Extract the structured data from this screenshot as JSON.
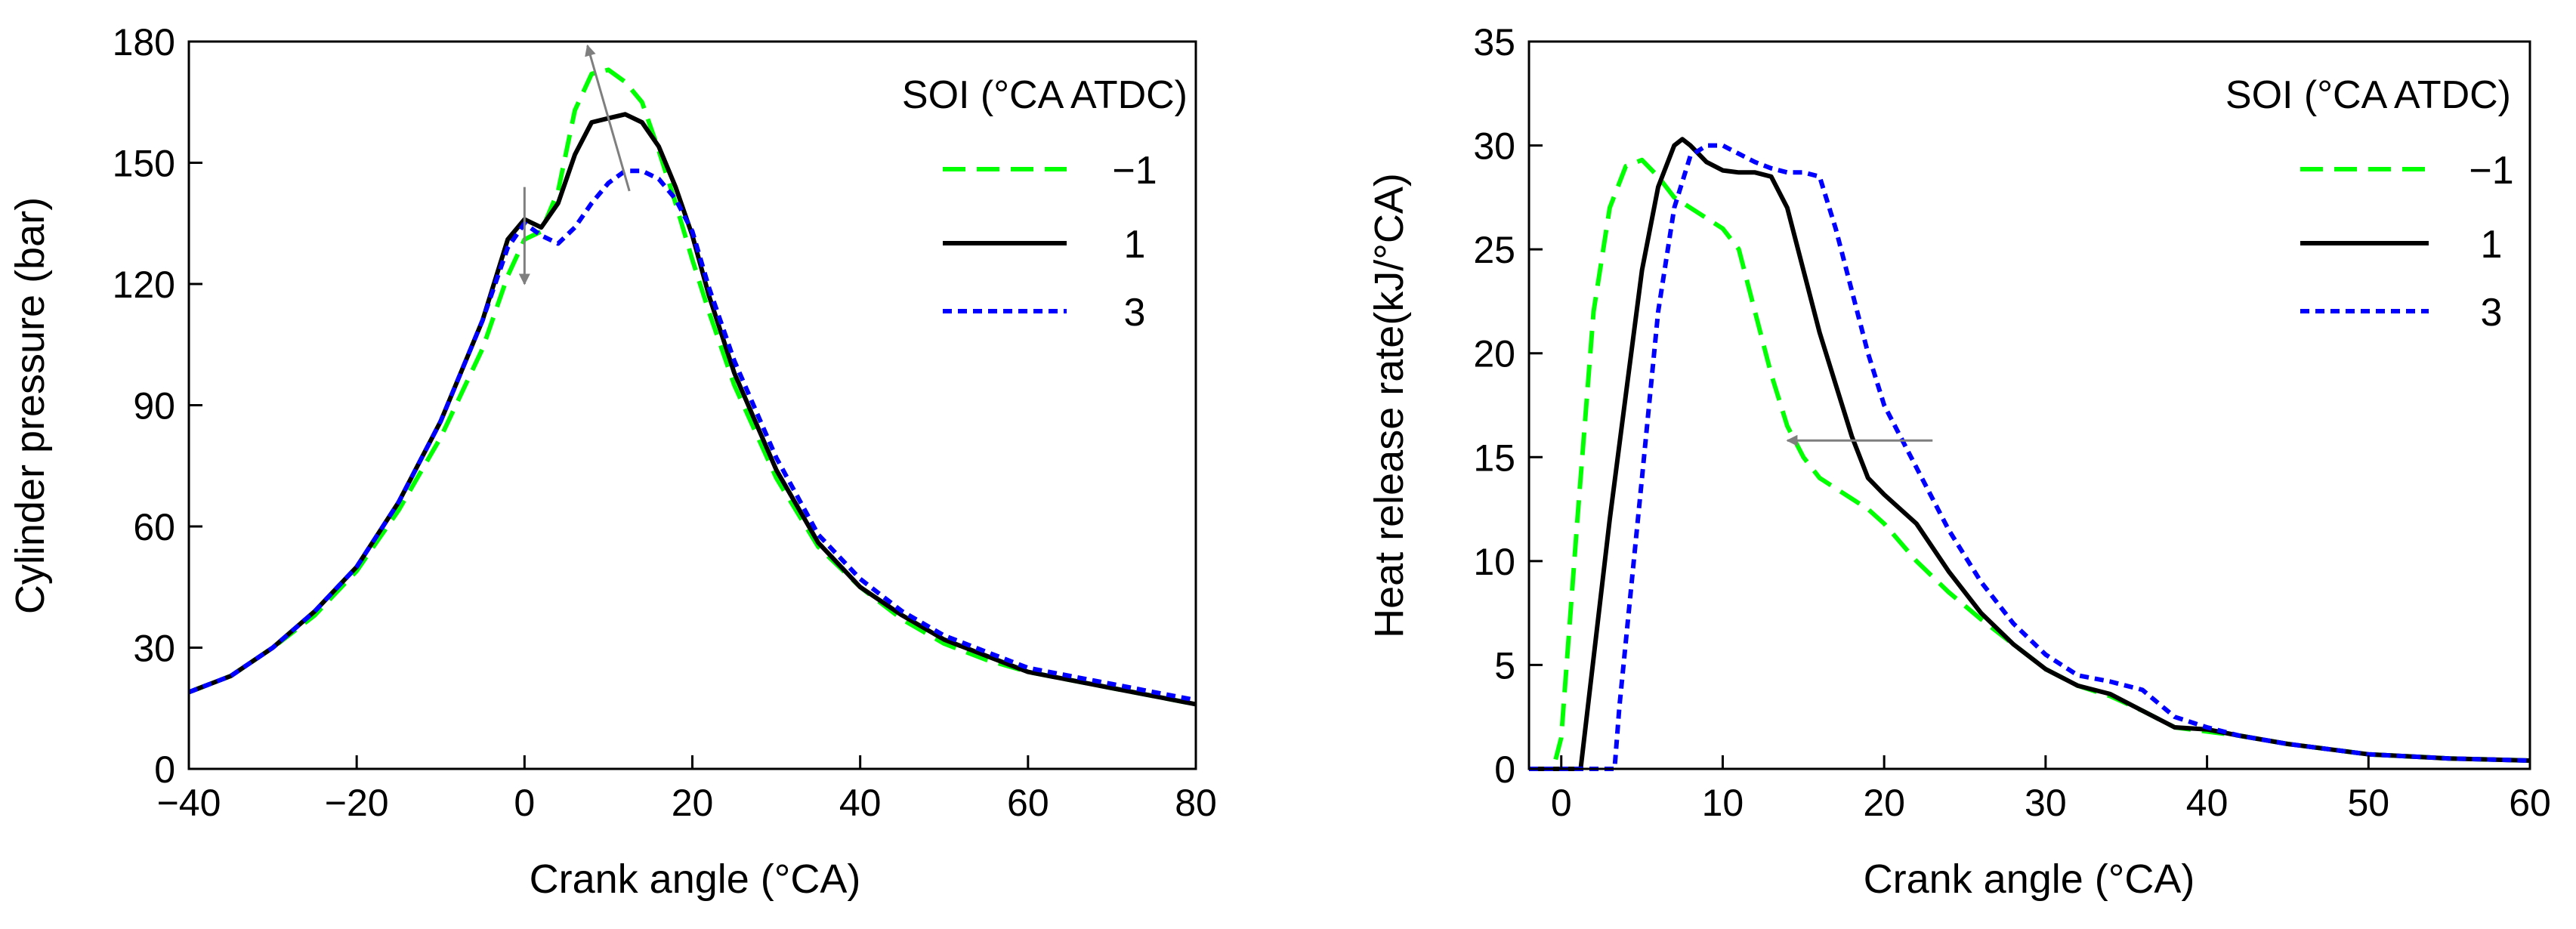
{
  "chart_data": [
    {
      "type": "line",
      "title": "",
      "xlabel": "Crank angle (°CA)",
      "ylabel": "Cylinder pressure (bar)",
      "xlim": [
        -40,
        80
      ],
      "ylim": [
        0,
        180
      ],
      "xticks": [
        -40,
        -20,
        0,
        20,
        40,
        60,
        80
      ],
      "yticks": [
        0,
        30,
        60,
        90,
        120,
        150,
        180
      ],
      "xtick_labels": [
        "−40",
        "−20",
        "0",
        "20",
        "40",
        "60",
        "80"
      ],
      "ytick_labels": [
        "0",
        "30",
        "60",
        "90",
        "120",
        "150",
        "180"
      ],
      "grid": false,
      "legend_title": "SOI (°CA ATDC)",
      "legend_position": "top-right",
      "annotations": [
        {
          "type": "arrow",
          "direction": "down",
          "from": [
            0,
            144
          ],
          "to": [
            0,
            120
          ]
        },
        {
          "type": "arrow",
          "direction": "up-left",
          "from": [
            12.5,
            143
          ],
          "to": [
            7.5,
            179
          ]
        }
      ],
      "series": [
        {
          "name": "−1",
          "color": "#00ff00",
          "dash": "dashed",
          "x": [
            -40,
            -35,
            -30,
            -25,
            -20,
            -15,
            -10,
            -5,
            -2,
            0,
            2,
            4,
            6,
            8,
            10,
            12,
            14,
            16,
            18,
            20,
            22,
            25,
            30,
            35,
            40,
            45,
            50,
            55,
            60,
            65,
            70,
            75,
            80
          ],
          "y": [
            19,
            23,
            30,
            38,
            49,
            64,
            82,
            104,
            122,
            131,
            133,
            143,
            163,
            172,
            173,
            170,
            165,
            153,
            140,
            126,
            113,
            95,
            72,
            55,
            45,
            37,
            31,
            27,
            24,
            22,
            20,
            18,
            16
          ]
        },
        {
          "name": "1",
          "color": "#000000",
          "dash": "solid",
          "x": [
            -40,
            -35,
            -30,
            -25,
            -20,
            -15,
            -10,
            -5,
            -2,
            0,
            2,
            4,
            6,
            8,
            10,
            12,
            14,
            16,
            18,
            20,
            22,
            25,
            30,
            35,
            40,
            45,
            50,
            55,
            60,
            65,
            70,
            75,
            80
          ],
          "y": [
            19,
            23,
            30,
            39,
            50,
            66,
            86,
            111,
            131,
            136,
            134,
            140,
            152,
            160,
            161,
            162,
            160,
            154,
            144,
            132,
            117,
            98,
            74,
            56,
            45,
            38,
            32,
            28,
            24,
            22,
            20,
            18,
            16
          ]
        },
        {
          "name": "3",
          "color": "#0000ff",
          "dash": "dotted",
          "x": [
            -40,
            -35,
            -30,
            -25,
            -20,
            -15,
            -10,
            -5,
            -2,
            0,
            2,
            4,
            6,
            8,
            10,
            12,
            14,
            16,
            18,
            20,
            22,
            25,
            30,
            35,
            40,
            45,
            50,
            55,
            60,
            65,
            70,
            75,
            80
          ],
          "y": [
            19,
            23,
            30,
            39,
            50,
            66,
            86,
            111,
            129,
            135,
            132,
            130,
            134,
            140,
            145,
            148,
            148,
            146,
            141,
            133,
            119,
            101,
            77,
            58,
            47,
            39,
            33,
            29,
            25,
            23,
            21,
            19,
            17
          ]
        }
      ]
    },
    {
      "type": "line",
      "title": "",
      "xlabel": "Crank angle (°CA)",
      "ylabel": "Heat release rate(kJ/°CA)",
      "xlim": [
        -2,
        60
      ],
      "ylim": [
        0,
        35
      ],
      "xticks": [
        0,
        10,
        20,
        30,
        40,
        50,
        60
      ],
      "yticks": [
        0,
        5,
        10,
        15,
        20,
        25,
        30,
        35
      ],
      "xtick_labels": [
        "0",
        "10",
        "20",
        "30",
        "40",
        "50",
        "60"
      ],
      "ytick_labels": [
        "0",
        "5",
        "10",
        "15",
        "20",
        "25",
        "30",
        "35"
      ],
      "grid": false,
      "legend_title": "SOI (°CA ATDC)",
      "legend_position": "top-right",
      "annotations": [
        {
          "type": "arrow",
          "direction": "left",
          "from": [
            23,
            15.8
          ],
          "to": [
            14,
            15.8
          ]
        }
      ],
      "series": [
        {
          "name": "−1",
          "color": "#00ff00",
          "dash": "dashed",
          "x": [
            -2,
            -0.5,
            0,
            1,
            2,
            3,
            4,
            5,
            6,
            7,
            8,
            9,
            10,
            11,
            12,
            13,
            14,
            15,
            16,
            17,
            18,
            19,
            20,
            22,
            24,
            26,
            28,
            30,
            32,
            34,
            36,
            38,
            40,
            42,
            45,
            50,
            55,
            60
          ],
          "y": [
            0,
            0,
            1.5,
            12,
            22,
            27,
            29,
            29.3,
            28.5,
            27.5,
            27,
            26.5,
            26,
            25,
            22,
            19,
            16.5,
            15,
            14,
            13.5,
            13,
            12.5,
            11.8,
            10,
            8.5,
            7.2,
            6,
            4.8,
            4,
            3.5,
            2.8,
            2,
            1.8,
            1.6,
            1.2,
            0.7,
            0.5,
            0.4
          ]
        },
        {
          "name": "1",
          "color": "#000000",
          "dash": "solid",
          "x": [
            -2,
            1.2,
            1.5,
            3,
            4,
            5,
            6,
            7,
            7.5,
            8,
            9,
            10,
            11,
            12,
            13,
            14,
            15,
            16,
            17,
            18,
            19,
            20,
            22,
            24,
            26,
            28,
            30,
            32,
            34,
            36,
            38,
            40,
            42,
            45,
            50,
            55,
            60
          ],
          "y": [
            0,
            0,
            2,
            12,
            18,
            24,
            28,
            30,
            30.3,
            30,
            29.2,
            28.8,
            28.7,
            28.7,
            28.5,
            27,
            24,
            21,
            18.5,
            16,
            14,
            13.2,
            11.8,
            9.5,
            7.5,
            6,
            4.8,
            4,
            3.6,
            2.8,
            2,
            1.9,
            1.6,
            1.2,
            0.7,
            0.5,
            0.4
          ]
        },
        {
          "name": "3",
          "color": "#0000ff",
          "dash": "dotted",
          "x": [
            -2,
            3.3,
            3.6,
            5,
            6,
            7,
            8,
            9,
            10,
            11,
            12,
            13,
            14,
            15,
            16,
            17,
            18,
            19,
            20,
            22,
            24,
            26,
            28,
            30,
            32,
            34,
            36,
            38,
            40,
            42,
            45,
            50,
            55,
            60
          ],
          "y": [
            0,
            0,
            3,
            14,
            22,
            27,
            29.5,
            30,
            30,
            29.6,
            29.2,
            28.9,
            28.7,
            28.7,
            28.5,
            26,
            23,
            20,
            17.5,
            14.5,
            11.5,
            9,
            7,
            5.5,
            4.5,
            4.2,
            3.8,
            2.5,
            2,
            1.6,
            1.2,
            0.7,
            0.5,
            0.4
          ]
        }
      ]
    }
  ]
}
